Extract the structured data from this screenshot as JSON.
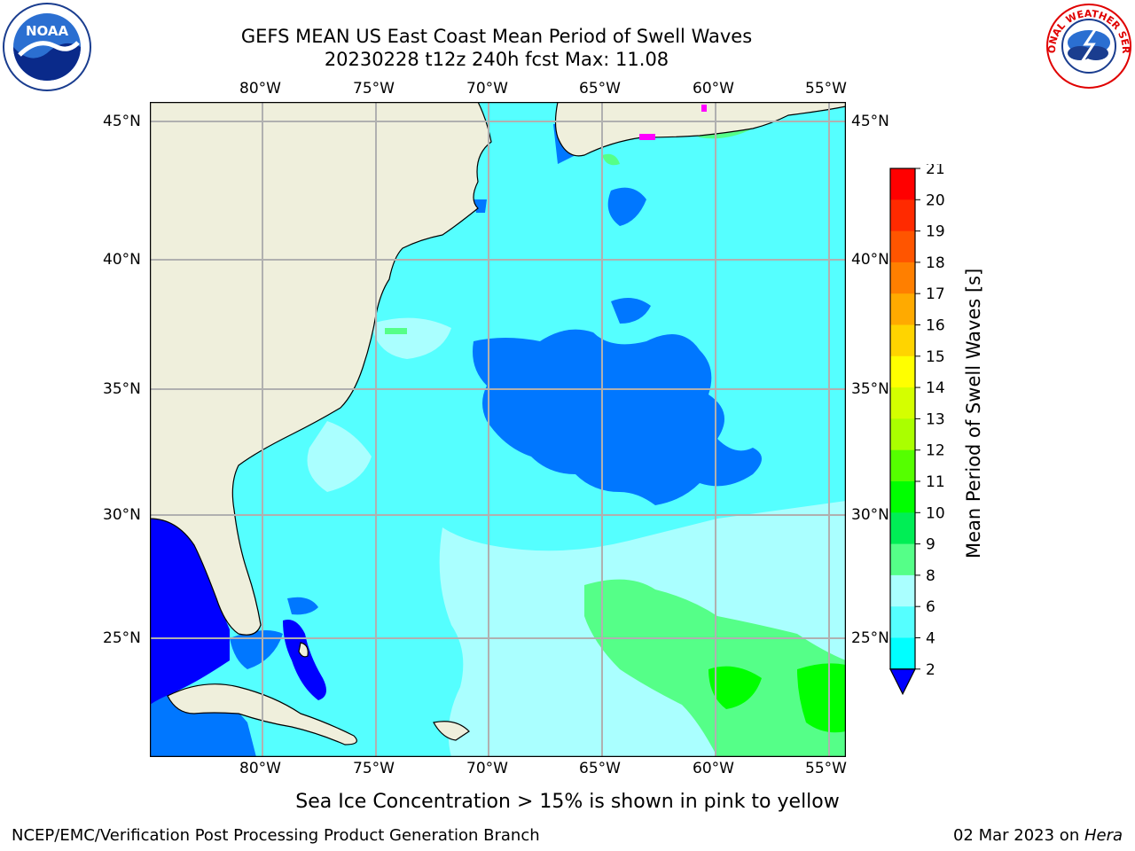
{
  "title_line1": "GEFS MEAN US East Coast Mean Period of Swell Waves",
  "title_line2": "20230228 t12z 240h fcst   Max: 11.08",
  "logos": {
    "left": "noaa-logo",
    "right": "nws-logo",
    "nws_text": "NATIONAL WEATHER SERVICE"
  },
  "lon_labels": [
    "80°W",
    "75°W",
    "70°W",
    "65°W",
    "60°W",
    "55°W"
  ],
  "lat_labels": [
    "45°N",
    "40°N",
    "35°N",
    "30°N",
    "25°N"
  ],
  "colorbar": {
    "label": "Mean Period of Swell Waves [s]",
    "ticks": [
      "21",
      "20",
      "19",
      "18",
      "17",
      "16",
      "15",
      "14",
      "13",
      "12",
      "11",
      "10",
      "9",
      "8",
      "6",
      "4",
      "2"
    ],
    "colors": [
      "#ff0000",
      "#ff2a00",
      "#ff5500",
      "#ff7f00",
      "#ffaa00",
      "#ffd400",
      "#ffff00",
      "#d4ff00",
      "#aaff00",
      "#55ff00",
      "#00ff00",
      "#00ee55",
      "#55ff88",
      "#aaffff",
      "#55ffff",
      "#00ffff",
      "#0077ff"
    ],
    "under_color": "#0000ff"
  },
  "map_colors": {
    "land": "#efefdc",
    "ocean_base": "#55ffff",
    "light": "#aaffff",
    "dark": "#0077ff",
    "deep": "#0000ff",
    "green": "#55ff88",
    "bright_green": "#00ff00",
    "ice": "#ff00ff"
  },
  "note": "Sea Ice Concentration > 15% is shown in pink to yellow",
  "footer_left": "NCEP/EMC/Verification Post Processing Product Generation Branch",
  "footer_date": "02 Mar 2023 on ",
  "footer_machine": "Hera"
}
